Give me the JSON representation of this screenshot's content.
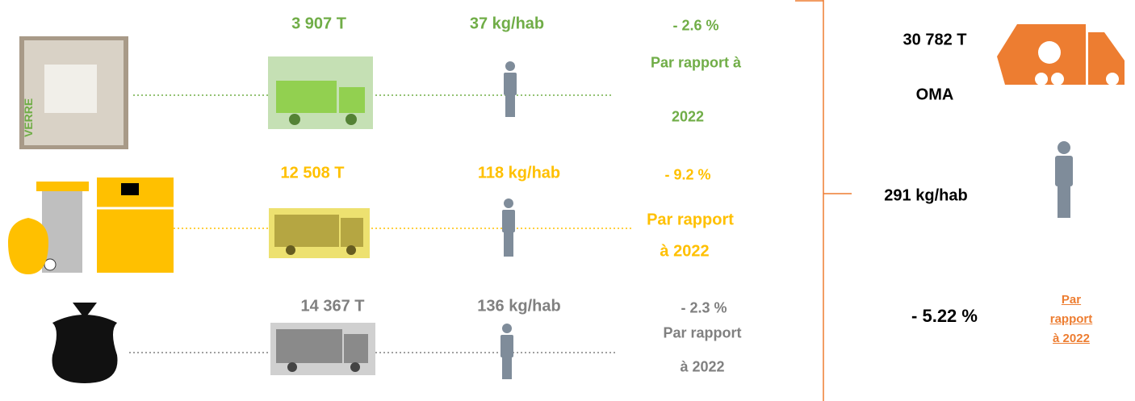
{
  "rows": [
    {
      "tonnage": "3 907 T",
      "per_capita": "37 kg/hab",
      "change": "- 2.6 %",
      "comparison": [
        "Par rapport à",
        "2022"
      ]
    },
    {
      "tonnage": "12 508 T",
      "per_capita": "118 kg/hab",
      "change": "- 9.2 %",
      "comparison": [
        "Par rapport",
        "à 2022"
      ]
    },
    {
      "tonnage": "14 367 T",
      "per_capita": "136 kg/hab",
      "change": "- 2.3 %",
      "comparison": [
        "Par rapport",
        "à 2022"
      ]
    }
  ],
  "total": {
    "tonnage": "30 782 T",
    "label": "OMA",
    "per_capita": "291 kg/hab",
    "change": "- 5.22 %",
    "comparison": [
      "Par rapport",
      "à 2022"
    ]
  }
}
